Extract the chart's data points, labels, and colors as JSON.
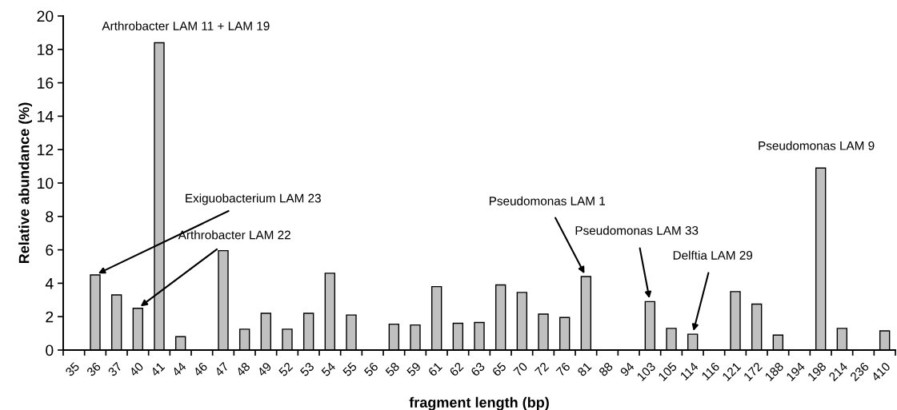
{
  "chart_data": {
    "type": "bar",
    "xlabel": "fragment length (bp)",
    "ylabel": "Relative abundance (%)",
    "categories": [
      "35",
      "36",
      "37",
      "40",
      "41",
      "44",
      "46",
      "47",
      "48",
      "49",
      "52",
      "53",
      "54",
      "55",
      "56",
      "58",
      "59",
      "61",
      "62",
      "63",
      "65",
      "70",
      "72",
      "76",
      "81",
      "88",
      "94",
      "103",
      "105",
      "114",
      "116",
      "121",
      "172",
      "188",
      "194",
      "198",
      "214",
      "236",
      "410"
    ],
    "values": [
      0,
      4.5,
      3.3,
      2.5,
      18.4,
      0.8,
      0,
      5.95,
      1.25,
      2.2,
      1.25,
      2.2,
      4.6,
      2.1,
      0,
      1.55,
      1.5,
      3.8,
      1.6,
      1.65,
      3.9,
      3.45,
      2.15,
      1.95,
      4.4,
      0,
      0,
      2.9,
      1.3,
      0.95,
      0,
      3.5,
      2.75,
      0.9,
      0,
      10.9,
      1.3,
      0,
      1.15
    ],
    "color": "#c0c0c0",
    "ylim": [
      0,
      20
    ],
    "yticks": [
      0,
      2,
      4,
      6,
      8,
      10,
      12,
      14,
      16,
      18,
      20
    ],
    "grid": false,
    "annotations": [
      {
        "text": "Arthrobacter LAM 11 + LAM 19",
        "x": "41",
        "y": 18.4
      },
      {
        "text": "Exiguobacterium LAM 23",
        "x": "36",
        "y": 4.5
      },
      {
        "text": "Arthrobacter LAM 22",
        "x": "40",
        "y": 2.5
      },
      {
        "text": "Pseudomonas LAM 1",
        "x": "81",
        "y": 4.4
      },
      {
        "text": "Pseudomonas LAM 33",
        "x": "103",
        "y": 2.9
      },
      {
        "text": "Delftia LAM 29",
        "x": "114",
        "y": 0.95
      },
      {
        "text": "Pseudomonas LAM 9",
        "x": "198",
        "y": 10.9
      }
    ]
  }
}
